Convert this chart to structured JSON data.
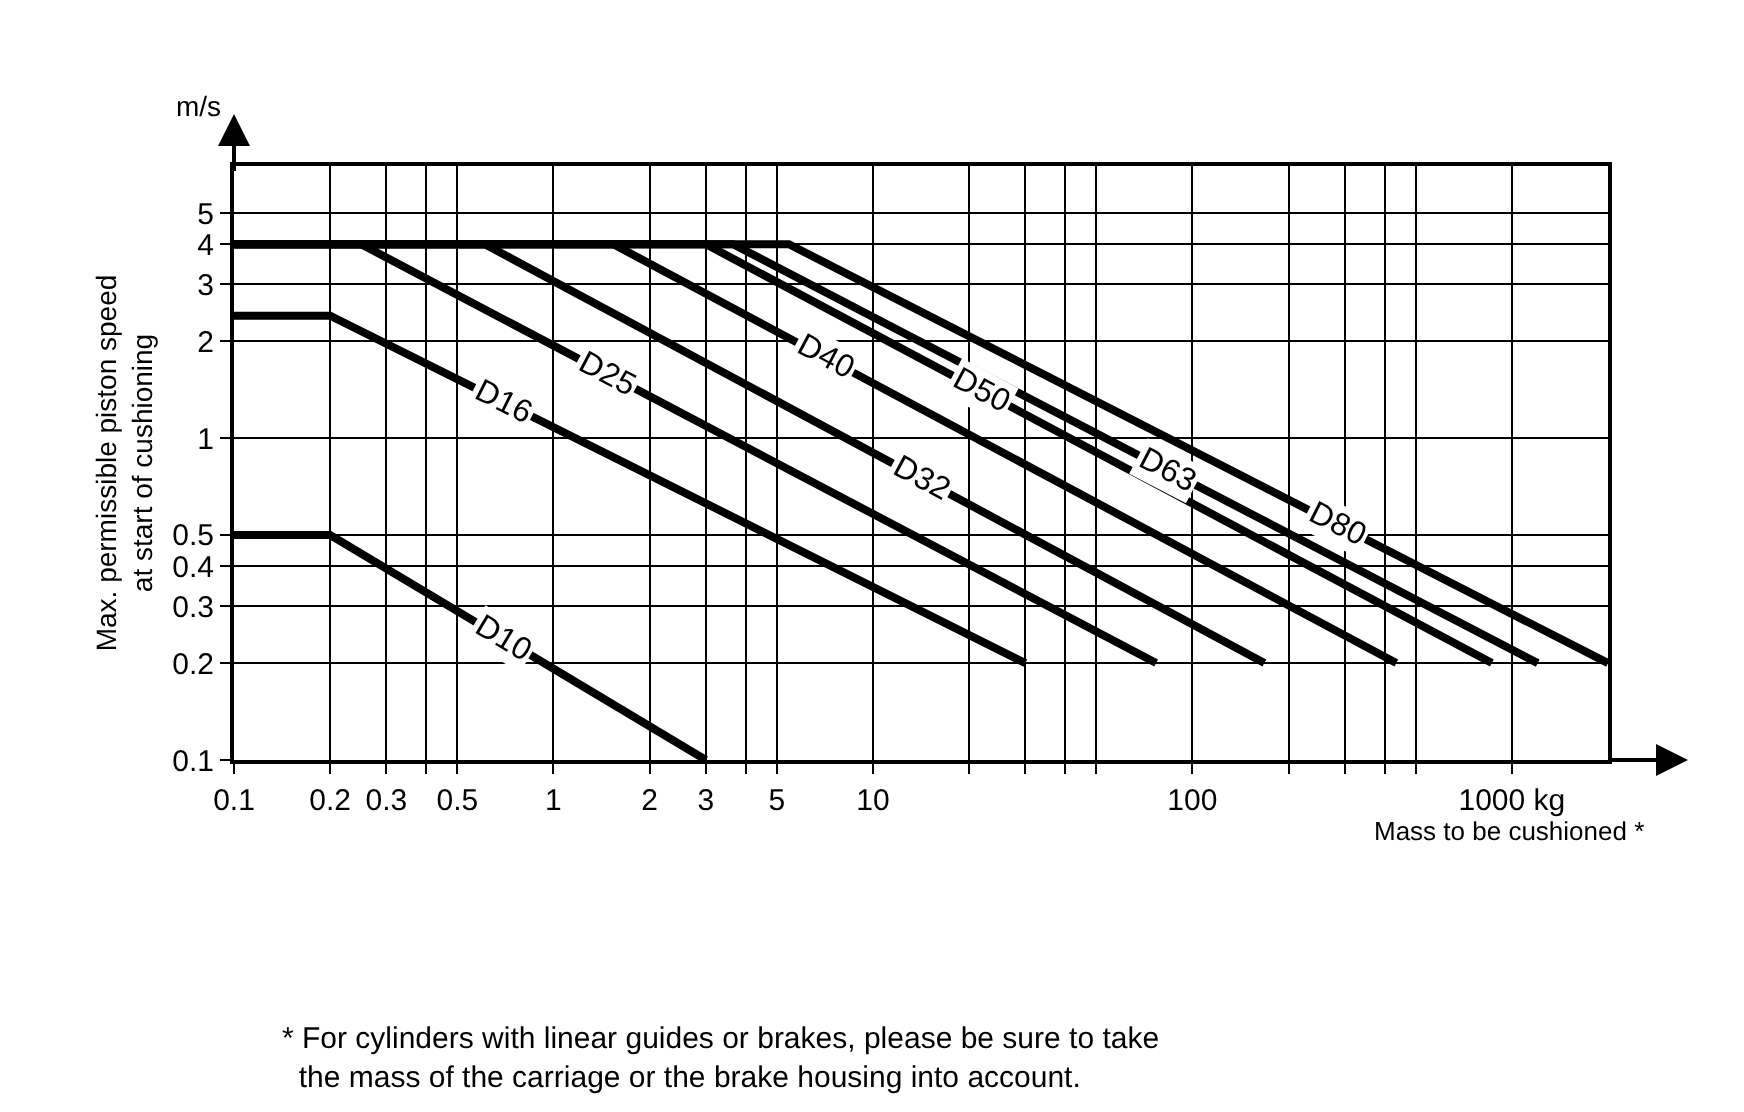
{
  "chart_data": {
    "type": "line",
    "xlabel": "Mass to be cushioned *",
    "ylabel": "Max. permissible piston speed\nat start of cushioning",
    "annotations": [
      "m/s",
      "* For cylinders with linear guides or brakes, please be sure to take\n  the mass of the carriage or the brake housing into account."
    ],
    "log": "xy",
    "grid": true,
    "legend": false,
    "marker": "none",
    "line_style": "solid",
    "xlim": [
      0.1,
      2000
    ],
    "ylim": [
      0.1,
      7
    ],
    "xticks": [
      0.1,
      0.2,
      0.3,
      {
        "value": 0.4,
        "label": null
      },
      0.5,
      1,
      2,
      3,
      {
        "value": 4,
        "label": null
      },
      5,
      10,
      {
        "value": 20,
        "label": null
      },
      {
        "value": 30,
        "label": null
      },
      {
        "value": 40,
        "label": null
      },
      {
        "value": 50,
        "label": null
      },
      100,
      {
        "value": 200,
        "label": null
      },
      {
        "value": 300,
        "label": null
      },
      {
        "value": 400,
        "label": null
      },
      {
        "value": 500,
        "label": null
      },
      {
        "value": 1000,
        "label": "1000 kg"
      }
    ],
    "yticks": [
      0.1,
      0.2,
      0.3,
      0.4,
      0.5,
      1,
      2,
      3,
      4,
      5
    ],
    "series": [
      {
        "name": "D10",
        "color": "#000000",
        "x": [
          0.1,
          0.2,
          3
        ],
        "values": [
          0.5,
          0.5,
          0.1
        ]
      },
      {
        "name": "D16",
        "color": "#000000",
        "x": [
          0.1,
          0.2,
          30
        ],
        "values": [
          2.4,
          2.4,
          0.2
        ]
      },
      {
        "name": "D25",
        "color": "#000000",
        "x": [
          0.1,
          0.25,
          77
        ],
        "values": [
          4,
          4,
          0.2
        ]
      },
      {
        "name": "D32",
        "color": "#000000",
        "x": [
          0.1,
          0.61,
          168
        ],
        "values": [
          4,
          4,
          0.2
        ]
      },
      {
        "name": "D40",
        "color": "#000000",
        "x": [
          0.1,
          1.54,
          435
        ],
        "values": [
          4,
          4,
          0.2
        ]
      },
      {
        "name": "D50",
        "color": "#000000",
        "x": [
          0.1,
          3,
          866
        ],
        "values": [
          4,
          4,
          0.2
        ]
      },
      {
        "name": "D63",
        "color": "#000000",
        "x": [
          0.1,
          3.65,
          1205
        ],
        "values": [
          4,
          4,
          0.2
        ]
      },
      {
        "name": "D80",
        "color": "#000000",
        "x": [
          0.1,
          5.46,
          2000
        ],
        "values": [
          4,
          4,
          0.2
        ]
      }
    ]
  }
}
